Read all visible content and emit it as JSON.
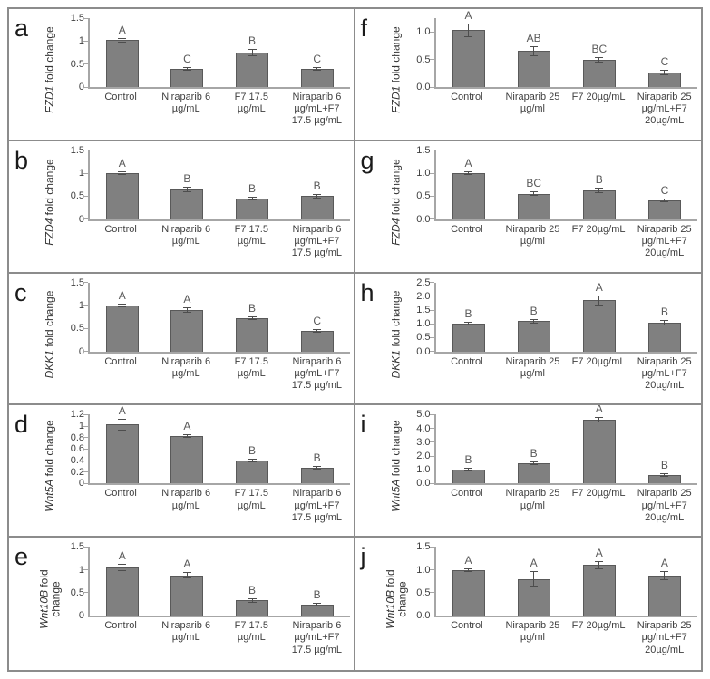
{
  "style": {
    "bar_fill": "#808080",
    "bar_border": "#595959",
    "error_bar_color": "#4d4d4d",
    "axis_color": "#a6a6a6",
    "divider_color": "#8c8c8c",
    "tick_text_color": "#404040",
    "significance_letter_color": "#595959"
  },
  "chart_data": [
    {
      "type": "bar",
      "panel_letter": "a",
      "gene": "FZD1",
      "ylabel_rest": " fold change",
      "ylabel": "FZD1 fold change",
      "ylim": [
        0,
        1.5
      ],
      "yticks": [
        {
          "value": 0,
          "label": "0"
        },
        {
          "value": 0.5,
          "label": "0.5"
        },
        {
          "value": 1,
          "label": "1"
        },
        {
          "value": 1.5,
          "label": "1.5"
        }
      ],
      "categories": [
        "Control",
        "Niraparib 6 µg/mL",
        "F7 17.5 µg/mL",
        "Niraparib 6 µg/mL+F7 17.5 µg/mL"
      ],
      "values": [
        1.02,
        0.4,
        0.75,
        0.4
      ],
      "errors": [
        0.05,
        0.04,
        0.07,
        0.02
      ],
      "sig_letters": [
        "A",
        "C",
        "B",
        "C"
      ]
    },
    {
      "type": "bar",
      "panel_letter": "b",
      "gene": "FZD4",
      "ylabel_rest": " fold change",
      "ylabel": "FZD4 fold change",
      "ylim": [
        0,
        1.5
      ],
      "yticks": [
        {
          "value": 0,
          "label": "0"
        },
        {
          "value": 0.5,
          "label": "0.5"
        },
        {
          "value": 1,
          "label": "1"
        },
        {
          "value": 1.5,
          "label": "1.5"
        }
      ],
      "categories": [
        "Control",
        "Niraparib 6 µg/mL",
        "F7 17.5 µg/mL",
        "Niraparib 6 µg/mL+F7 17.5 µg/mL"
      ],
      "values": [
        1.0,
        0.65,
        0.46,
        0.5
      ],
      "errors": [
        0.03,
        0.06,
        0.02,
        0.05
      ],
      "sig_letters": [
        "A",
        "B",
        "B",
        "B"
      ]
    },
    {
      "type": "bar",
      "panel_letter": "c",
      "gene": "DKK1",
      "ylabel_rest": " fold change",
      "ylabel": "DKK1 fold change",
      "ylim": [
        0,
        1.5
      ],
      "yticks": [
        {
          "value": 0,
          "label": "0"
        },
        {
          "value": 0.5,
          "label": "0.5"
        },
        {
          "value": 1,
          "label": "1"
        },
        {
          "value": 1.5,
          "label": "1.5"
        }
      ],
      "categories": [
        "Control",
        "Niraparib 6 µg/mL",
        "F7 17.5 µg/mL",
        "Niraparib 6 µg/mL+F7 17.5 µg/mL"
      ],
      "values": [
        1.0,
        0.9,
        0.72,
        0.45
      ],
      "errors": [
        0.02,
        0.05,
        0.03,
        0.01
      ],
      "sig_letters": [
        "A",
        "A",
        "B",
        "C"
      ]
    },
    {
      "type": "bar",
      "panel_letter": "d",
      "gene": "Wnt5A",
      "ylabel_rest": " fold change",
      "ylabel": "Wnt5A fold change",
      "ylim": [
        0,
        1.2
      ],
      "yticks": [
        {
          "value": 0,
          "label": "0"
        },
        {
          "value": 0.2,
          "label": "0.2"
        },
        {
          "value": 0.4,
          "label": "0.4"
        },
        {
          "value": 0.6,
          "label": "0.6"
        },
        {
          "value": 0.8,
          "label": "0.8"
        },
        {
          "value": 1,
          "label": "1"
        },
        {
          "value": 1.2,
          "label": "1.2"
        }
      ],
      "categories": [
        "Control",
        "Niraparib 6 µg/mL",
        "F7 17.5 µg/mL",
        "Niraparib 6 µg/mL+F7 17.5 µg/mL"
      ],
      "values": [
        1.03,
        0.83,
        0.4,
        0.28
      ],
      "errors": [
        0.1,
        0.02,
        0.01,
        0.03
      ],
      "sig_letters": [
        "A",
        "A",
        "B",
        "B"
      ]
    },
    {
      "type": "bar",
      "panel_letter": "e",
      "gene": "Wnt10B",
      "ylabel_rest": " fold change",
      "ylabel": "Wnt10B fold change",
      "ylim": [
        0,
        1.5
      ],
      "yticks": [
        {
          "value": 0,
          "label": "0"
        },
        {
          "value": 0.5,
          "label": "0.5"
        },
        {
          "value": 1,
          "label": "1"
        },
        {
          "value": 1.5,
          "label": "1.5"
        }
      ],
      "categories": [
        "Control",
        "Niraparib 6 µg/mL",
        "F7 17.5 µg/mL",
        "Niraparib 6 µg/mL+F7 17.5 µg/mL"
      ],
      "values": [
        1.05,
        0.88,
        0.33,
        0.25
      ],
      "errors": [
        0.08,
        0.07,
        0.05,
        0.04
      ],
      "sig_letters": [
        "A",
        "A",
        "B",
        "B"
      ]
    },
    {
      "type": "bar",
      "panel_letter": "f",
      "gene": "FZD1",
      "ylabel_rest": " fold change",
      "ylabel": "FZD1 fold change",
      "ylim": [
        0,
        1.25
      ],
      "yticks": [
        {
          "value": 0,
          "label": "0.0"
        },
        {
          "value": 0.5,
          "label": "0.5"
        },
        {
          "value": 1,
          "label": "1.0"
        }
      ],
      "categories": [
        "Control",
        "Niraparib 25 µg/ml",
        "F7 20µg/mL",
        "Niraparib 25 µg/mL+F7 20µg/mL"
      ],
      "values": [
        1.03,
        0.65,
        0.5,
        0.27
      ],
      "errors": [
        0.12,
        0.09,
        0.05,
        0.05
      ],
      "sig_letters": [
        "A",
        "AB",
        "BC",
        "C"
      ]
    },
    {
      "type": "bar",
      "panel_letter": "g",
      "gene": "FZD4",
      "ylabel_rest": " fold change",
      "ylabel": "FZD4 fold change",
      "ylim": [
        0,
        1.5
      ],
      "yticks": [
        {
          "value": 0,
          "label": "0.0"
        },
        {
          "value": 0.5,
          "label": "0.5"
        },
        {
          "value": 1,
          "label": "1.0"
        },
        {
          "value": 1.5,
          "label": "1.5"
        }
      ],
      "categories": [
        "Control",
        "Niraparib 25 µg/ml",
        "F7 20µg/mL",
        "Niraparib 25 µg/mL+F7 20µg/mL"
      ],
      "values": [
        1.0,
        0.55,
        0.62,
        0.42
      ],
      "errors": [
        0.04,
        0.05,
        0.06,
        0.04
      ],
      "sig_letters": [
        "A",
        "BC",
        "B",
        "C"
      ]
    },
    {
      "type": "bar",
      "panel_letter": "h",
      "gene": "DKK1",
      "ylabel_rest": " fold change",
      "ylabel": "DKK1 fold change",
      "ylim": [
        0,
        2.5
      ],
      "yticks": [
        {
          "value": 0,
          "label": "0.0"
        },
        {
          "value": 0.5,
          "label": "0.5"
        },
        {
          "value": 1,
          "label": "1.0"
        },
        {
          "value": 1.5,
          "label": "1.5"
        },
        {
          "value": 2,
          "label": "2.0"
        },
        {
          "value": 2.5,
          "label": "2.5"
        }
      ],
      "categories": [
        "Control",
        "Niraparib 25 µg/ml",
        "F7 20µg/mL",
        "Niraparib 25 µg/mL+F7 20µg/mL"
      ],
      "values": [
        1.0,
        1.1,
        1.85,
        1.05
      ],
      "errors": [
        0.05,
        0.08,
        0.18,
        0.1
      ],
      "sig_letters": [
        "B",
        "B",
        "A",
        "B"
      ]
    },
    {
      "type": "bar",
      "panel_letter": "i",
      "gene": "Wnt5A",
      "ylabel_rest": " fold change",
      "ylabel": "Wnt5A fold change",
      "ylim": [
        0,
        5.0
      ],
      "yticks": [
        {
          "value": 0,
          "label": "0.0"
        },
        {
          "value": 1,
          "label": "1.0"
        },
        {
          "value": 2,
          "label": "2.0"
        },
        {
          "value": 3,
          "label": "3.0"
        },
        {
          "value": 4,
          "label": "4.0"
        },
        {
          "value": 5,
          "label": "5.0"
        }
      ],
      "categories": [
        "Control",
        "Niraparib 25 µg/ml",
        "F7 20µg/mL",
        "Niraparib 25 µg/mL+F7 20µg/mL"
      ],
      "values": [
        1.0,
        1.5,
        4.65,
        0.6
      ],
      "errors": [
        0.06,
        0.1,
        0.2,
        0.06
      ],
      "sig_letters": [
        "B",
        "B",
        "A",
        "B"
      ]
    },
    {
      "type": "bar",
      "panel_letter": "j",
      "gene": "Wnt10B",
      "ylabel_rest": " fold change",
      "ylabel": "Wnt10B fold change",
      "ylim": [
        0,
        1.5
      ],
      "yticks": [
        {
          "value": 0,
          "label": "0.0"
        },
        {
          "value": 0.5,
          "label": "0.5"
        },
        {
          "value": 1,
          "label": "1.0"
        },
        {
          "value": 1.5,
          "label": "1.5"
        }
      ],
      "categories": [
        "Control",
        "Niraparib 25 µg/ml",
        "F7 20µg/mL",
        "Niraparib 25 µg/mL+F7 20µg/mL"
      ],
      "values": [
        1.0,
        0.8,
        1.1,
        0.88
      ],
      "errors": [
        0.03,
        0.17,
        0.09,
        0.1
      ],
      "sig_letters": [
        "A",
        "A",
        "A",
        "A"
      ]
    }
  ]
}
